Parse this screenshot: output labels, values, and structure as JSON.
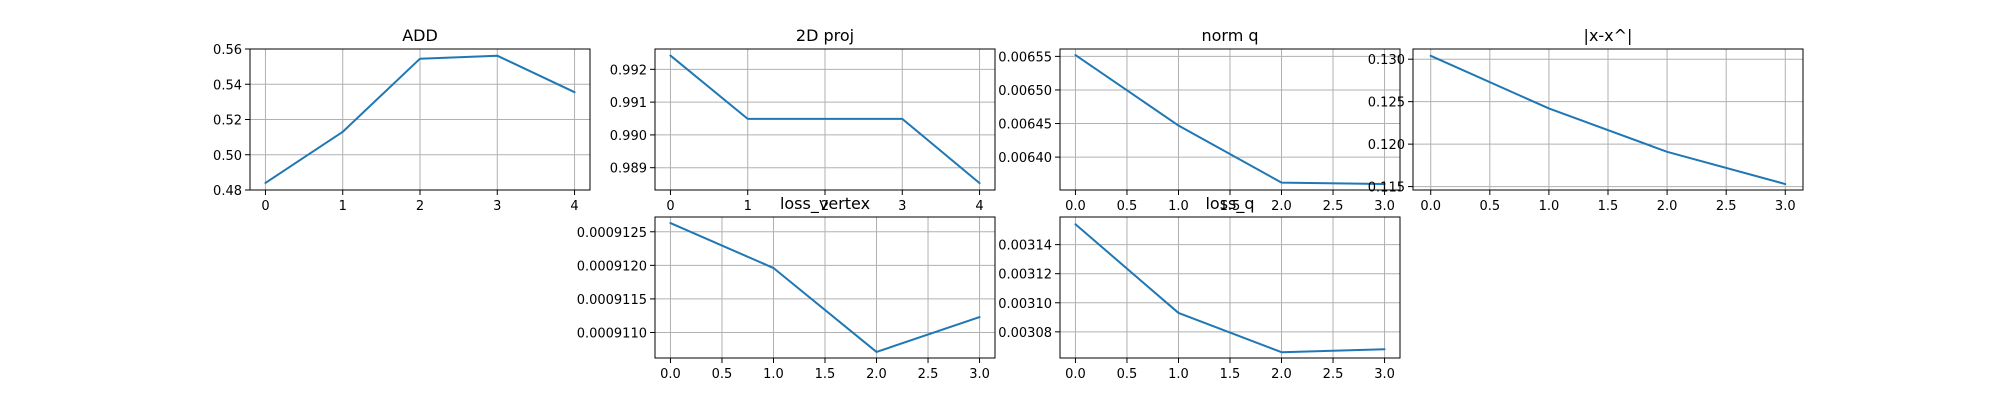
{
  "figure": {
    "background": "#ffffff",
    "line_color": "#1f77b4",
    "grid_color": "#b0b0b0"
  },
  "chart_data": [
    {
      "type": "line",
      "title": "ADD",
      "xlabel": "",
      "ylabel": "",
      "grid": true,
      "x": [
        0,
        1,
        2,
        3,
        4
      ],
      "series": [
        {
          "values": [
            0.484,
            0.513,
            0.5545,
            0.5562,
            0.5355
          ]
        }
      ],
      "xlim": [
        -0.2,
        4.2
      ],
      "ylim": [
        0.48,
        0.56
      ],
      "xticks": [
        0,
        1,
        2,
        3,
        4
      ],
      "xtick_labels": [
        "0",
        "1",
        "2",
        "3",
        "4"
      ],
      "yticks": [
        0.48,
        0.5,
        0.52,
        0.54,
        0.56
      ],
      "ytick_labels": [
        "0.48",
        "0.50",
        "0.52",
        "0.54",
        "0.56"
      ]
    },
    {
      "type": "line",
      "title": "2D proj",
      "xlabel": "",
      "ylabel": "",
      "grid": true,
      "x": [
        0,
        1,
        2,
        3,
        4
      ],
      "series": [
        {
          "values": [
            0.99242,
            0.99049,
            0.99049,
            0.99049,
            0.98853
          ]
        }
      ],
      "xlim": [
        -0.2,
        4.2
      ],
      "ylim": [
        0.98832,
        0.99262
      ],
      "xticks": [
        0,
        1,
        2,
        3,
        4
      ],
      "xtick_labels": [
        "0",
        "1",
        "2",
        "3",
        "4"
      ],
      "yticks": [
        0.989,
        0.99,
        0.991,
        0.992
      ],
      "ytick_labels": [
        "0.989",
        "0.990",
        "0.991",
        "0.992"
      ]
    },
    {
      "type": "line",
      "title": "norm q",
      "xlabel": "",
      "ylabel": "",
      "grid": true,
      "x": [
        0.0,
        1.0,
        2.0,
        3.0
      ],
      "series": [
        {
          "values": [
            0.006552,
            0.006447,
            0.006362,
            0.00636
          ]
        }
      ],
      "xlim": [
        -0.15,
        3.15
      ],
      "ylim": [
        0.006351,
        0.006561
      ],
      "xticks": [
        0.0,
        0.5,
        1.0,
        1.5,
        2.0,
        2.5,
        3.0
      ],
      "xtick_labels": [
        "0.0",
        "0.5",
        "1.0",
        "1.5",
        "2.0",
        "2.5",
        "3.0"
      ],
      "yticks": [
        0.0064,
        0.00645,
        0.0065,
        0.00655
      ],
      "ytick_labels": [
        "0.00640",
        "0.00645",
        "0.00650",
        "0.00655"
      ]
    },
    {
      "type": "line",
      "title": "|x-x^|",
      "xlabel": "",
      "ylabel": "",
      "grid": true,
      "x": [
        0.0,
        1.0,
        2.0,
        3.0
      ],
      "series": [
        {
          "values": [
            0.1304,
            0.1242,
            0.1191,
            0.1153
          ]
        }
      ],
      "xlim": [
        -0.15,
        3.15
      ],
      "ylim": [
        0.1146,
        0.1312
      ],
      "xticks": [
        0.0,
        0.5,
        1.0,
        1.5,
        2.0,
        2.5,
        3.0
      ],
      "xtick_labels": [
        "0.0",
        "0.5",
        "1.0",
        "1.5",
        "2.0",
        "2.5",
        "3.0"
      ],
      "yticks": [
        0.115,
        0.12,
        0.125,
        0.13
      ],
      "ytick_labels": [
        "0.115",
        "0.120",
        "0.125",
        "0.130"
      ]
    },
    {
      "type": "line",
      "title": "loss_vertex",
      "xlabel": "",
      "ylabel": "",
      "grid": true,
      "x": [
        0.0,
        1.0,
        2.0,
        3.0
      ],
      "series": [
        {
          "values": [
            0.00091263,
            0.00091196,
            0.00091071,
            0.00091123
          ]
        }
      ],
      "xlim": [
        -0.15,
        3.15
      ],
      "ylim": [
        0.00091062,
        0.00091272
      ],
      "xticks": [
        0.0,
        0.5,
        1.0,
        1.5,
        2.0,
        2.5,
        3.0
      ],
      "xtick_labels": [
        "0.0",
        "0.5",
        "1.0",
        "1.5",
        "2.0",
        "2.5",
        "3.0"
      ],
      "yticks": [
        0.000911,
        0.0009115,
        0.000912,
        0.0009125
      ],
      "ytick_labels": [
        "0.0009110",
        "0.0009115",
        "0.0009120",
        "0.0009125"
      ]
    },
    {
      "type": "line",
      "title": "loss_q",
      "xlabel": "",
      "ylabel": "",
      "grid": true,
      "x": [
        0.0,
        1.0,
        2.0,
        3.0
      ],
      "series": [
        {
          "values": [
            0.003154,
            0.003093,
            0.003066,
            0.003068
          ]
        }
      ],
      "xlim": [
        -0.15,
        3.15
      ],
      "ylim": [
        0.003062,
        0.003159
      ],
      "xticks": [
        0.0,
        0.5,
        1.0,
        1.5,
        2.0,
        2.5,
        3.0
      ],
      "xtick_labels": [
        "0.0",
        "0.5",
        "1.0",
        "1.5",
        "2.0",
        "2.5",
        "3.0"
      ],
      "yticks": [
        0.00308,
        0.0031,
        0.00312,
        0.00314
      ],
      "ytick_labels": [
        "0.00308",
        "0.00310",
        "0.00312",
        "0.00314"
      ]
    }
  ]
}
